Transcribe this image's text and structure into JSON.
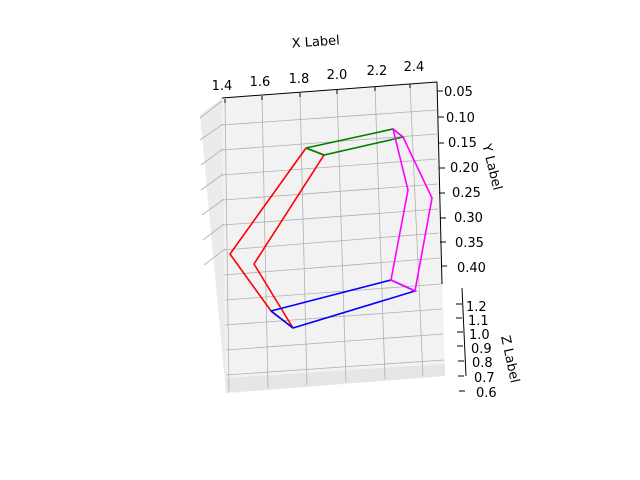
{
  "chart_data": {
    "type": "line",
    "projection": "3d",
    "xlabel": "X Label",
    "ylabel": "Y Label",
    "zlabel": "Z Label",
    "x_ticks": [
      "1.4",
      "1.6",
      "1.8",
      "2.0",
      "2.2",
      "2.4"
    ],
    "y_ticks": [
      "0.05",
      "0.10",
      "0.15",
      "0.20",
      "0.25",
      "0.30",
      "0.35",
      "0.40"
    ],
    "z_ticks": [
      "1.2",
      "1.1",
      "1.0",
      "0.9",
      "0.8",
      "0.7",
      "0.6"
    ],
    "grid": true,
    "series": [
      {
        "color": "#ff0000",
        "segments": 6
      },
      {
        "color": "#008000",
        "segments": 4
      },
      {
        "color": "#0000ff",
        "segments": 4
      },
      {
        "color": "#ff00ff",
        "segments": 6
      }
    ]
  }
}
